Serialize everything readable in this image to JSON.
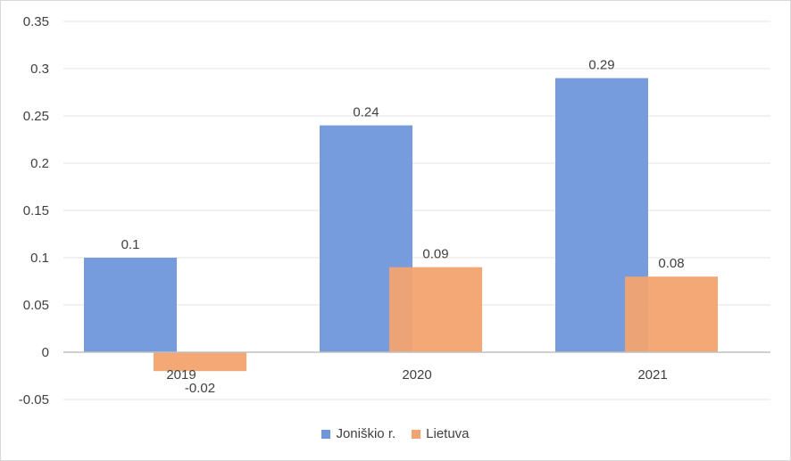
{
  "chart_data": {
    "type": "bar",
    "categories": [
      "2019",
      "2020",
      "2021"
    ],
    "series": [
      {
        "name": "Joniškio r.",
        "values": [
          0.1,
          0.24,
          0.29
        ],
        "color": "#7097DB"
      },
      {
        "name": "Lietuva",
        "values": [
          -0.02,
          0.09,
          0.08
        ],
        "color": "#F2A36F"
      }
    ],
    "data_labels": [
      [
        "0.1",
        "0.24",
        "0.29"
      ],
      [
        "-0.02",
        "0.09",
        "0.08"
      ]
    ],
    "yticks": [
      "0.35",
      "0.3",
      "0.25",
      "0.2",
      "0.15",
      "0.1",
      "0.05",
      "0",
      "-0.05"
    ],
    "ytick_values": [
      0.35,
      0.3,
      0.25,
      0.2,
      0.15,
      0.1,
      0.05,
      0,
      -0.05
    ],
    "ylim": [
      -0.05,
      0.35
    ],
    "grid": true,
    "legend_position": "bottom",
    "title": "",
    "xlabel": "",
    "ylabel": ""
  }
}
